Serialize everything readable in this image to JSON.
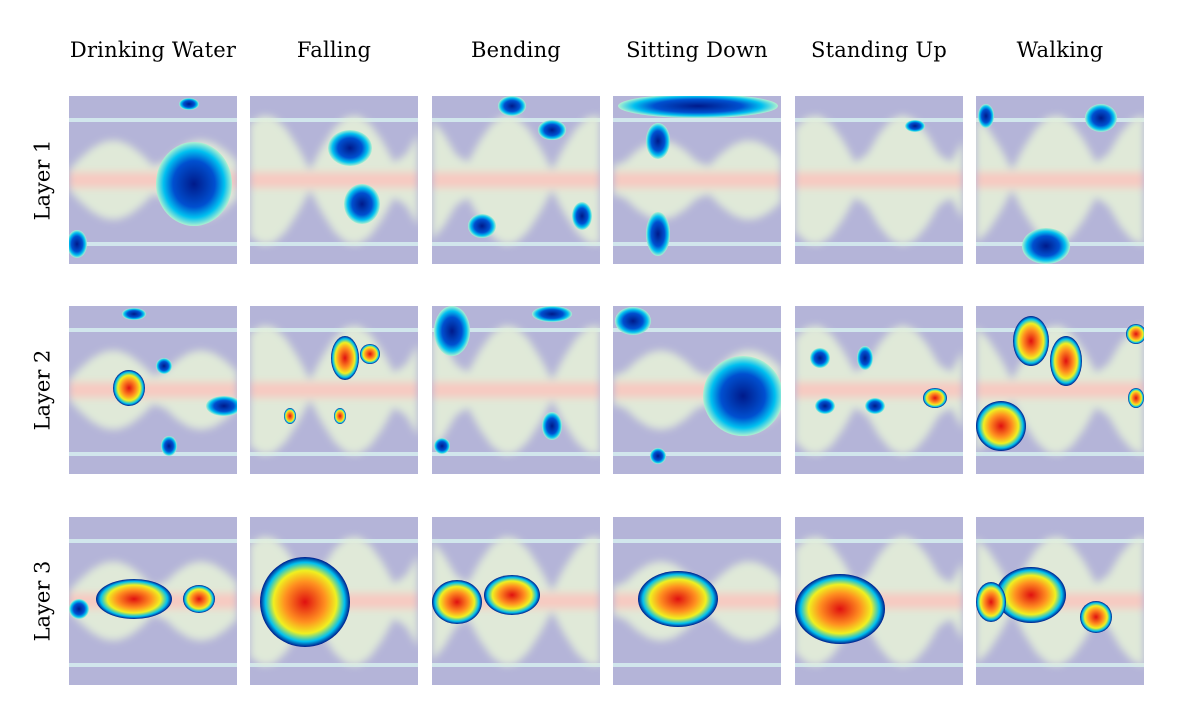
{
  "columns": [
    {
      "label": "Drinking Water",
      "key": "drinking-water"
    },
    {
      "label": "Falling",
      "key": "falling"
    },
    {
      "label": "Bending",
      "key": "bending"
    },
    {
      "label": "Sitting Down",
      "key": "sitting-down"
    },
    {
      "label": "Standing Up",
      "key": "standing-up"
    },
    {
      "label": "Walking",
      "key": "walking"
    }
  ],
  "rows": [
    {
      "label": "Layer 1",
      "key": "layer-1"
    },
    {
      "label": "Layer 2",
      "key": "layer-2"
    },
    {
      "label": "Layer 3",
      "key": "layer-3"
    }
  ],
  "colors": {
    "background": "#b4b4d8",
    "stripe": "#d6eef0",
    "band_core": "#f8c8c0",
    "band_halo": "#e4f0d8",
    "blob_low": "#001a8a",
    "blob_mid": "#00c0f0",
    "blob_high": "#e01010"
  }
}
